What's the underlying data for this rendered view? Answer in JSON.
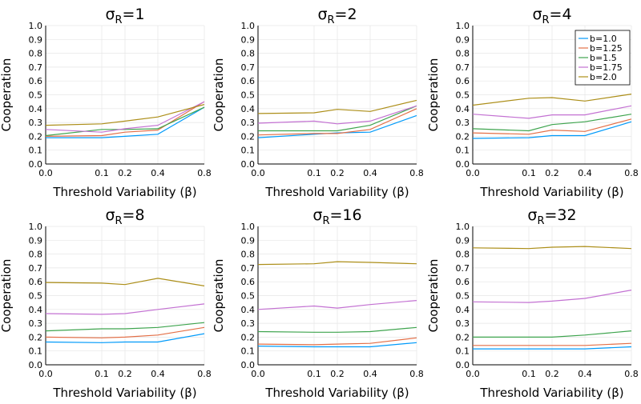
{
  "colors": {
    "series": [
      "#009AFA",
      "#E36F47",
      "#3EA44E",
      "#C371D2",
      "#AC8E18"
    ],
    "grid": "#e6e6e6",
    "axis": "#000000"
  },
  "chart_data": [
    {
      "type": "line",
      "title": "σR=1",
      "title_main": "σ",
      "title_sub": "R",
      "title_rest": "=1",
      "xlabel": "Threshold Variability (β)",
      "ylabel": "Cooperation",
      "x": [
        0,
        0.1,
        0.2,
        0.4,
        0.8
      ],
      "xlim": [
        0,
        0.8
      ],
      "ylim": [
        0,
        1
      ],
      "xticks": [
        "0.0",
        "0.1",
        "0.2",
        "0.4",
        "0.8"
      ],
      "yticks": [
        "0.0",
        "0.1",
        "0.2",
        "0.3",
        "0.4",
        "0.5",
        "0.6",
        "0.7",
        "0.8",
        "0.9",
        "1.0"
      ],
      "grid": true,
      "x_scale": "sqrt",
      "series": [
        {
          "values": [
            0.19,
            0.19,
            0.2,
            0.215,
            0.41
          ]
        },
        {
          "values": [
            0.2,
            0.205,
            0.23,
            0.245,
            0.45
          ]
        },
        {
          "values": [
            0.205,
            0.25,
            0.25,
            0.255,
            0.41
          ]
        },
        {
          "values": [
            0.25,
            0.23,
            0.255,
            0.28,
            0.45
          ]
        },
        {
          "values": [
            0.28,
            0.29,
            0.31,
            0.34,
            0.43
          ]
        }
      ]
    },
    {
      "type": "line",
      "title": "σR=2",
      "title_main": "σ",
      "title_sub": "R",
      "title_rest": "=2",
      "xlabel": "Threshold Variability (β)",
      "ylabel": "Cooperation",
      "x": [
        0,
        0.1,
        0.2,
        0.4,
        0.8
      ],
      "xlim": [
        0,
        0.8
      ],
      "ylim": [
        0,
        1
      ],
      "xticks": [
        "0.0",
        "0.1",
        "0.2",
        "0.4",
        "0.8"
      ],
      "yticks": [
        "0.0",
        "0.1",
        "0.2",
        "0.3",
        "0.4",
        "0.5",
        "0.6",
        "0.7",
        "0.8",
        "0.9",
        "1.0"
      ],
      "grid": true,
      "x_scale": "sqrt",
      "series": [
        {
          "values": [
            0.19,
            0.215,
            0.225,
            0.23,
            0.35
          ]
        },
        {
          "values": [
            0.21,
            0.22,
            0.22,
            0.25,
            0.4
          ]
        },
        {
          "values": [
            0.24,
            0.24,
            0.24,
            0.28,
            0.42
          ]
        },
        {
          "values": [
            0.295,
            0.31,
            0.29,
            0.31,
            0.42
          ]
        },
        {
          "values": [
            0.365,
            0.37,
            0.395,
            0.38,
            0.46
          ]
        }
      ]
    },
    {
      "type": "line",
      "title": "σR=4",
      "title_main": "σ",
      "title_sub": "R",
      "title_rest": "=4",
      "xlabel": "Threshold Variability (β)",
      "ylabel": "Cooperation",
      "x": [
        0,
        0.1,
        0.2,
        0.4,
        0.8
      ],
      "xlim": [
        0,
        0.8
      ],
      "ylim": [
        0,
        1
      ],
      "xticks": [
        "0.0",
        "0.1",
        "0.2",
        "0.4",
        "0.8"
      ],
      "yticks": [
        "0.0",
        "0.1",
        "0.2",
        "0.3",
        "0.4",
        "0.5",
        "0.6",
        "0.7",
        "0.8",
        "0.9",
        "1.0"
      ],
      "grid": true,
      "x_scale": "sqrt",
      "legend_position": "top-right",
      "series": [
        {
          "name": "b=1.0",
          "values": [
            0.185,
            0.19,
            0.205,
            0.205,
            0.305
          ]
        },
        {
          "name": "b=1.25",
          "values": [
            0.225,
            0.215,
            0.245,
            0.235,
            0.325
          ]
        },
        {
          "name": "b=1.5",
          "values": [
            0.255,
            0.24,
            0.285,
            0.305,
            0.36
          ]
        },
        {
          "name": "b=1.75",
          "values": [
            0.36,
            0.33,
            0.355,
            0.355,
            0.42
          ]
        },
        {
          "name": "b=2.0",
          "values": [
            0.425,
            0.475,
            0.48,
            0.455,
            0.505
          ]
        }
      ]
    },
    {
      "type": "line",
      "title": "σR=8",
      "title_main": "σ",
      "title_sub": "R",
      "title_rest": "=8",
      "xlabel": "Threshold Variability (β)",
      "ylabel": "Cooperation",
      "x": [
        0,
        0.1,
        0.2,
        0.4,
        0.8
      ],
      "xlim": [
        0,
        0.8
      ],
      "ylim": [
        0,
        1
      ],
      "xticks": [
        "0.0",
        "0.1",
        "0.2",
        "0.4",
        "0.8"
      ],
      "yticks": [
        "0.0",
        "0.1",
        "0.2",
        "0.3",
        "0.4",
        "0.5",
        "0.6",
        "0.7",
        "0.8",
        "0.9",
        "1.0"
      ],
      "grid": true,
      "x_scale": "sqrt",
      "series": [
        {
          "values": [
            0.165,
            0.16,
            0.165,
            0.165,
            0.225
          ]
        },
        {
          "values": [
            0.2,
            0.195,
            0.2,
            0.215,
            0.27
          ]
        },
        {
          "values": [
            0.245,
            0.26,
            0.26,
            0.27,
            0.305
          ]
        },
        {
          "values": [
            0.37,
            0.365,
            0.37,
            0.4,
            0.44
          ]
        },
        {
          "values": [
            0.595,
            0.59,
            0.58,
            0.625,
            0.57
          ]
        }
      ]
    },
    {
      "type": "line",
      "title": "σR=16",
      "title_main": "σ",
      "title_sub": "R",
      "title_rest": "=16",
      "xlabel": "Threshold Variability (β)",
      "ylabel": "Cooperation",
      "x": [
        0,
        0.1,
        0.2,
        0.4,
        0.8
      ],
      "xlim": [
        0,
        0.8
      ],
      "ylim": [
        0,
        1
      ],
      "xticks": [
        "0.0",
        "0.1",
        "0.2",
        "0.4",
        "0.8"
      ],
      "yticks": [
        "0.0",
        "0.1",
        "0.2",
        "0.3",
        "0.4",
        "0.5",
        "0.6",
        "0.7",
        "0.8",
        "0.9",
        "1.0"
      ],
      "grid": true,
      "x_scale": "sqrt",
      "series": [
        {
          "values": [
            0.135,
            0.13,
            0.13,
            0.13,
            0.16
          ]
        },
        {
          "values": [
            0.15,
            0.145,
            0.15,
            0.155,
            0.195
          ]
        },
        {
          "values": [
            0.24,
            0.235,
            0.235,
            0.24,
            0.27
          ]
        },
        {
          "values": [
            0.4,
            0.425,
            0.41,
            0.435,
            0.465
          ]
        },
        {
          "values": [
            0.725,
            0.73,
            0.745,
            0.74,
            0.73
          ]
        }
      ]
    },
    {
      "type": "line",
      "title": "σR=32",
      "title_main": "σ",
      "title_sub": "R",
      "title_rest": "=32",
      "xlabel": "Threshold Variability (β)",
      "ylabel": "Cooperation",
      "x": [
        0,
        0.1,
        0.2,
        0.4,
        0.8
      ],
      "xlim": [
        0,
        0.8
      ],
      "ylim": [
        0,
        1
      ],
      "xticks": [
        "0.0",
        "0.1",
        "0.2",
        "0.4",
        "0.8"
      ],
      "yticks": [
        "0.0",
        "0.1",
        "0.2",
        "0.3",
        "0.4",
        "0.5",
        "0.6",
        "0.7",
        "0.8",
        "0.9",
        "1.0"
      ],
      "grid": true,
      "x_scale": "sqrt",
      "series": [
        {
          "values": [
            0.115,
            0.115,
            0.115,
            0.115,
            0.13
          ]
        },
        {
          "values": [
            0.14,
            0.14,
            0.14,
            0.14,
            0.155
          ]
        },
        {
          "values": [
            0.2,
            0.2,
            0.2,
            0.215,
            0.245
          ]
        },
        {
          "values": [
            0.455,
            0.45,
            0.46,
            0.48,
            0.54
          ]
        },
        {
          "values": [
            0.845,
            0.84,
            0.85,
            0.855,
            0.84
          ]
        }
      ]
    }
  ]
}
